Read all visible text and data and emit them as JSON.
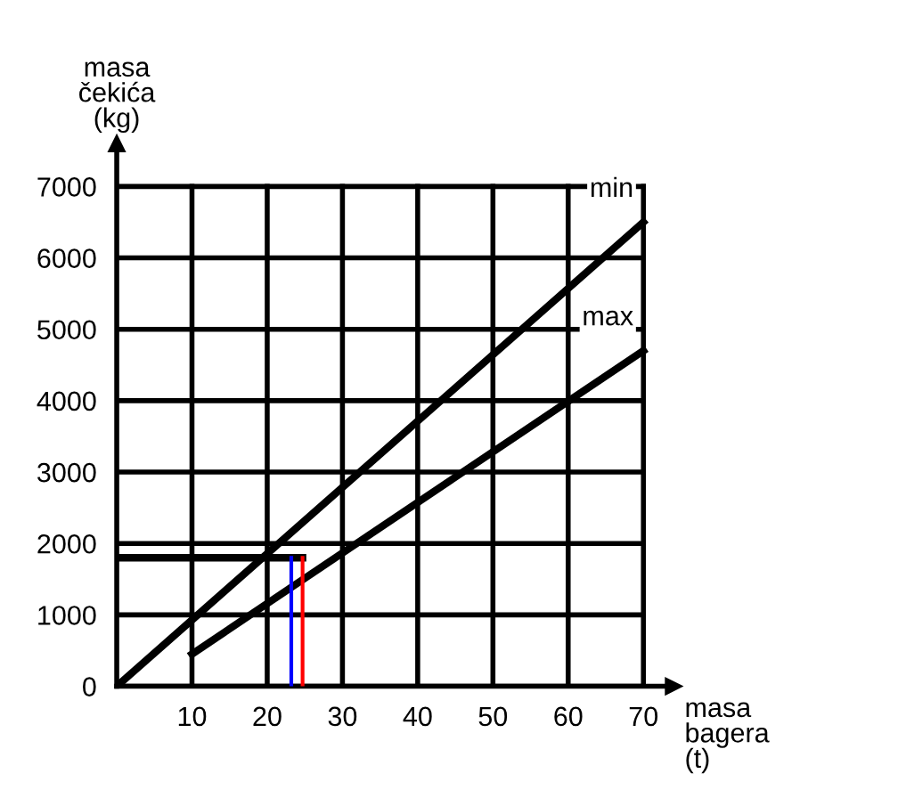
{
  "chart_data": {
    "type": "line",
    "xlabel": "masa\nbagera\n(t)",
    "ylabel": "masa\nčekića\n(kg)",
    "series": [
      {
        "color": "#000000",
        "x": [
          0,
          70
        ],
        "values": [
          0,
          6500
        ]
      },
      {
        "color": "#000000",
        "x": [
          10,
          70
        ],
        "values": [
          450,
          4700
        ]
      },
      {
        "color": "#000000",
        "x": [
          0,
          24.7
        ],
        "values": [
          1800,
          1800
        ]
      },
      {
        "color": "#0000ff",
        "x": [
          23.2,
          23.2
        ],
        "values": [
          0,
          1800
        ]
      },
      {
        "color": "#ff0000",
        "x": [
          24.7,
          24.7
        ],
        "values": [
          0,
          1800
        ]
      }
    ],
    "annotations": [
      "min",
      "max"
    ],
    "xlim": [
      0,
      74
    ],
    "ylim": [
      0,
      7600
    ],
    "xticks": [
      10,
      20,
      30,
      40,
      50,
      60,
      70
    ],
    "yticks": [
      0,
      1000,
      2000,
      3000,
      4000,
      5000,
      6000,
      7000
    ],
    "grid": true,
    "legend": false,
    "marker": "none",
    "line_style": "solid"
  }
}
